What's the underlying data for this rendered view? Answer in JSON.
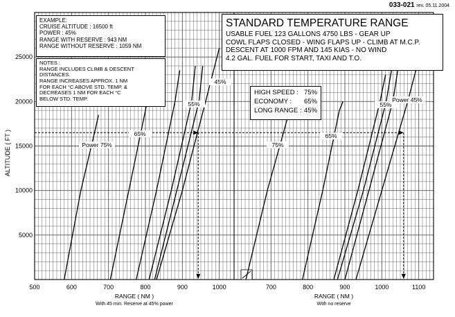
{
  "doc_id": "033-021",
  "revision": "rev. 05.11.2004",
  "example": {
    "lines": [
      "EXAMPLE:",
      "CRUISE ALTITUDE : 16500 ft",
      "POWER : 45%",
      "RANGE WITH RESERVE : 943 NM",
      "RANGE WITHOUT RESERVE : 1059 NM"
    ]
  },
  "notes": {
    "lines": [
      "NOTES :",
      "RANGE INCLUDES CLIMB & DESCENT",
      "DISTANCES.",
      "RANGE INCREASES APPROX. 1 NM",
      "FOR EACH °C ABOVE STD. TEMP. &",
      "DECREASES 1 NM FOR EACH °C",
      "BELOW STD. TEMP."
    ]
  },
  "conditions": {
    "title": "STANDARD TEMPERATURE RANGE",
    "lines": [
      "USABLE FUEL 123 GALLONS 4750 LBS - GEAR UP",
      "COWL FLAPS CLOSED - WING FLAPS UP - CLIMB AT M.C.P.",
      "DESCENT AT 1000 FPM AND 145 KIAS - NO WIND",
      "4.2 GAL. FUEL FOR START, TAXI AND T.O."
    ]
  },
  "speed_legend": {
    "rows": [
      {
        "label": "HIGH SPEED :",
        "value": "75%"
      },
      {
        "label": "ECONOMY :",
        "value": "65%"
      },
      {
        "label": "LONG RANGE :",
        "value": "45%"
      }
    ]
  },
  "chart_data": {
    "type": "line",
    "ylabel": "ALTITUDE ( FT )",
    "ylim": [
      0,
      30000
    ],
    "yticks": [
      "5000",
      "10000",
      "15000",
      "20000",
      "25000"
    ],
    "grid": true,
    "panels": [
      {
        "xlabel": "RANGE ( NM )",
        "subtitle": "With 45 min. Reserve at 45% power",
        "xlim": [
          500,
          1040
        ],
        "xticks": [
          "500",
          "600",
          "700",
          "800",
          "900",
          "1000"
        ],
        "series": [
          {
            "name": "Power 75%",
            "points": [
              [
                580,
                0
              ],
              [
                625,
                10000
              ],
              [
                665,
                17000
              ],
              [
                673,
                18500
              ]
            ]
          },
          {
            "name": "65%",
            "points": [
              [
                705,
                0
              ],
              [
                755,
                10000
              ],
              [
                800,
                19000
              ],
              [
                805,
                20000
              ]
            ]
          },
          {
            "name": "55%",
            "points": [
              [
                775,
                0
              ],
              [
                830,
                10000
              ],
              [
                880,
                20000
              ],
              [
                893,
                23500
              ]
            ]
          },
          {
            "name": "",
            "points": [
              [
                810,
                0
              ],
              [
                870,
                10000
              ],
              [
                925,
                20000
              ],
              [
                935,
                24000
              ]
            ]
          },
          {
            "name": "",
            "points": [
              [
                825,
                0
              ],
              [
                885,
                10000
              ],
              [
                945,
                20000
              ],
              [
                955,
                24000
              ]
            ]
          },
          {
            "name": "45%",
            "points": [
              [
                830,
                0
              ],
              [
                900,
                10000
              ],
              [
                963,
                20000
              ],
              [
                1000,
                26000
              ]
            ]
          }
        ],
        "example_path": [
          [
            500,
            16500
          ],
          [
            943,
            16500
          ],
          [
            943,
            0
          ]
        ]
      },
      {
        "xlabel": "RANGE ( NM )",
        "subtitle": "With no reserve",
        "xlim": [
          600,
          1140
        ],
        "xticks": [
          "700",
          "800",
          "900",
          "1000",
          "1100"
        ],
        "series": [
          {
            "name": "75%",
            "points": [
              [
                632,
                0
              ],
              [
                690,
                10000
              ],
              [
                737,
                17000
              ],
              [
                747,
                18500
              ]
            ]
          },
          {
            "name": "65%",
            "points": [
              [
                785,
                0
              ],
              [
                840,
                10000
              ],
              [
                885,
                19000
              ],
              [
                895,
                20000
              ]
            ]
          },
          {
            "name": "",
            "points": [
              [
                870,
                0
              ],
              [
                935,
                10000
              ],
              [
                995,
                20000
              ],
              [
                1010,
                23000
              ]
            ]
          },
          {
            "name": "55%",
            "points": [
              [
                880,
                0
              ],
              [
                950,
                10000
              ],
              [
                1012,
                20000
              ],
              [
                1028,
                24000
              ]
            ]
          },
          {
            "name": "",
            "points": [
              [
                900,
                0
              ],
              [
                965,
                10000
              ],
              [
                1030,
                20000
              ],
              [
                1045,
                24000
              ]
            ]
          },
          {
            "name": "Power 45%",
            "points": [
              [
                930,
                0
              ],
              [
                1000,
                10000
              ],
              [
                1070,
                20000
              ],
              [
                1105,
                25500
              ]
            ]
          }
        ],
        "example_path": [
          [
            600,
            16500
          ],
          [
            1059,
            16500
          ],
          [
            1059,
            0
          ]
        ]
      }
    ]
  }
}
